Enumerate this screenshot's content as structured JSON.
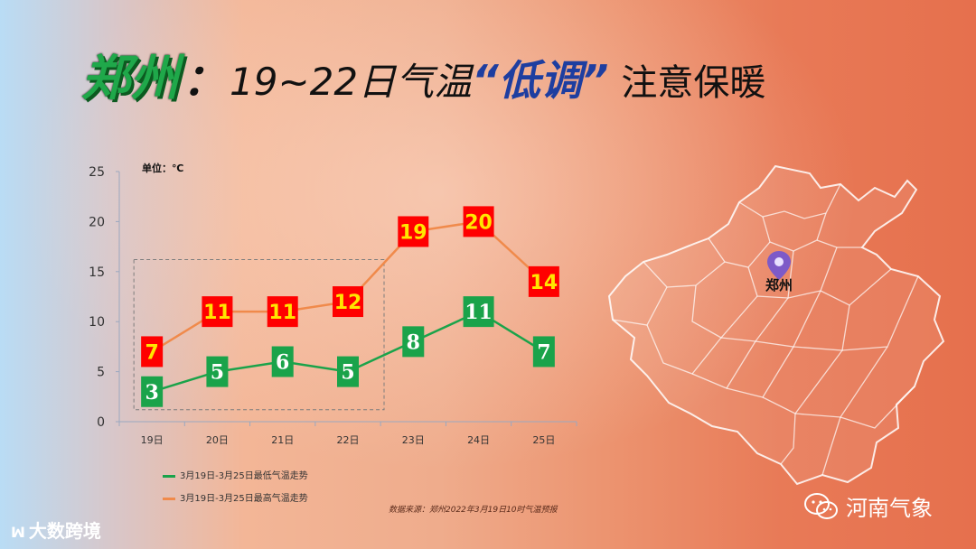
{
  "title": {
    "city": "郑州",
    "colon": "：",
    "main": "19~22日气温",
    "quoted": "“低调”",
    "tail": "注意保暖"
  },
  "unit_label": "单位：℃",
  "map_city_label": "郑州",
  "source": "数据来源：郑州2022年3月19日10时气温预报",
  "watermark": "大数跨境",
  "wechat_name": "河南气象",
  "colors": {
    "low_series": "#1aa34a",
    "high_series": "#f08a4b",
    "low_box": "#1aa34a",
    "high_box": "#ff0000",
    "high_text": "#ffe600"
  },
  "chart_data": {
    "type": "line",
    "categories": [
      "19日",
      "20日",
      "21日",
      "22日",
      "23日",
      "24日",
      "25日"
    ],
    "ylim": [
      0,
      25
    ],
    "yticks": [
      0,
      5,
      10,
      15,
      20,
      25
    ],
    "series": [
      {
        "name": "3月19日-3月25日最低气温走势",
        "values": [
          3,
          5,
          6,
          5,
          8,
          11,
          7
        ]
      },
      {
        "name": "3月19日-3月25日最高气温走势",
        "values": [
          7,
          11,
          11,
          12,
          19,
          20,
          14
        ]
      }
    ],
    "highlight_range": [
      "19日",
      "22日"
    ],
    "grid": false,
    "legend": "bottom-left"
  }
}
